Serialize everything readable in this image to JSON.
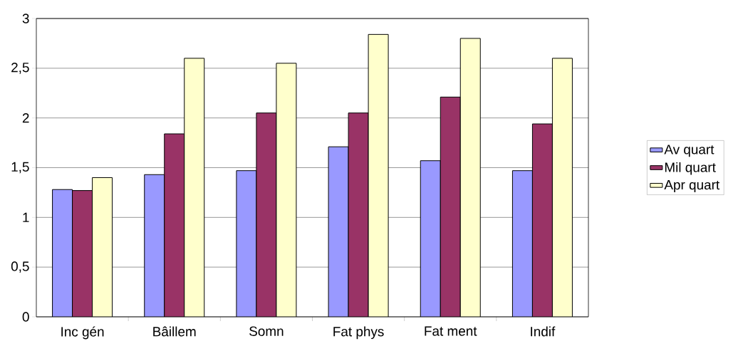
{
  "chart_data": {
    "type": "bar",
    "categories": [
      "Inc gén",
      "Bâillem",
      "Somn",
      "Fat phys",
      "Fat ment",
      "Indif"
    ],
    "series": [
      {
        "name": "Av quart",
        "color": "#9999ff",
        "values": [
          1.28,
          1.43,
          1.47,
          1.71,
          1.57,
          1.47
        ]
      },
      {
        "name": "Mil quart",
        "color": "#993366",
        "values": [
          1.27,
          1.84,
          2.05,
          2.05,
          2.21,
          1.94
        ]
      },
      {
        "name": "Apr quart",
        "color": "#ffffcc",
        "values": [
          1.4,
          2.6,
          2.55,
          2.84,
          2.8,
          2.6
        ]
      }
    ],
    "ylim": [
      0,
      3
    ],
    "yticks": [
      0,
      {
        "value": 0.5,
        "label": "0,5"
      },
      1,
      {
        "value": 1.5,
        "label": "1,5"
      },
      2,
      {
        "value": 2.5,
        "label": "2,5"
      },
      3
    ],
    "grid": "y",
    "legend": "right"
  }
}
